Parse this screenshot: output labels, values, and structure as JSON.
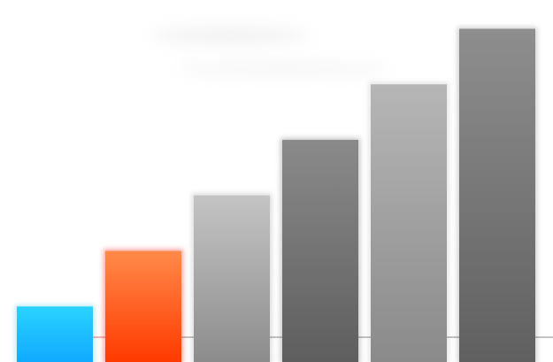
{
  "chart_data": {
    "type": "bar",
    "categories": [
      "",
      "",
      "",
      "",
      "",
      ""
    ],
    "values": [
      1,
      2,
      3,
      4,
      5,
      6
    ],
    "ylim": [
      0,
      6.2
    ],
    "grid": false,
    "legend": "none",
    "baseline_color": "#cc3333",
    "bars": [
      {
        "top": "#2ad2ff",
        "bottom": "#11aaff",
        "glow": "#88ddff"
      },
      {
        "top": "#ff8a4a",
        "bottom": "#ff3a00",
        "glow": "#ff5555"
      },
      {
        "top": "#c4c4c4",
        "bottom": "#8c8c8c",
        "glow": "#bbbbbb"
      },
      {
        "top": "#8a8a8a",
        "bottom": "#5e5e5e",
        "glow": "#999999"
      },
      {
        "top": "#b6b6b6",
        "bottom": "#8a8a8a",
        "glow": "#cccccc"
      },
      {
        "top": "#8e8e8e",
        "bottom": "#606060",
        "glow": "#aaaaaa"
      }
    ]
  }
}
